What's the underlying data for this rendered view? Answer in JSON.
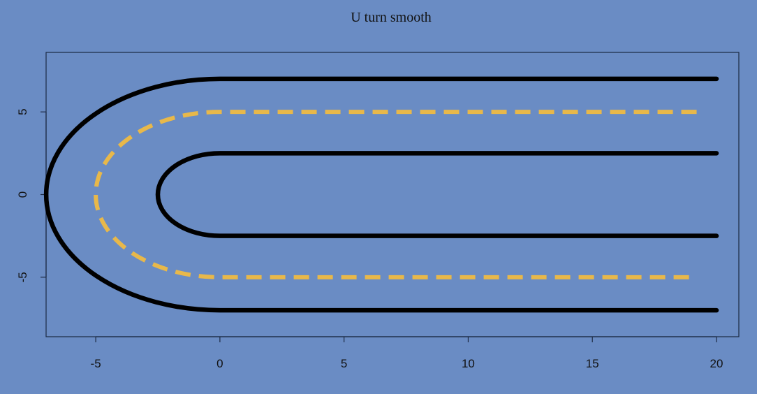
{
  "chart_data": {
    "type": "line",
    "title": "U turn smooth",
    "xlabel": "",
    "ylabel": "",
    "xlim": [
      -7,
      20.9
    ],
    "ylim": [
      -8.6,
      8.6
    ],
    "x_ticks": [
      "-5",
      "0",
      "5",
      "10",
      "15",
      "20"
    ],
    "y_ticks": [
      "-5",
      "0",
      "5"
    ],
    "grid": false,
    "background": "#6a8cc4",
    "series": [
      {
        "style": "solid",
        "color": "#000000",
        "shape": "outer-edge",
        "points": [
          [
            20,
            7
          ],
          [
            0,
            7
          ],
          [
            -7,
            0
          ],
          [
            0,
            -7
          ],
          [
            20,
            -7
          ]
        ]
      },
      {
        "style": "solid",
        "color": "#000000",
        "shape": "inner-edge",
        "points": [
          [
            20,
            2.5
          ],
          [
            0,
            2.5
          ],
          [
            -2.5,
            0
          ],
          [
            0,
            -2.5
          ],
          [
            20,
            -2.5
          ]
        ]
      },
      {
        "style": "dashed",
        "color": "#e8b84a",
        "shape": "center-line",
        "points": [
          [
            19.2,
            5
          ],
          [
            0,
            5
          ],
          [
            -5,
            0
          ],
          [
            0,
            -5
          ],
          [
            19.2,
            -5
          ]
        ]
      }
    ]
  }
}
